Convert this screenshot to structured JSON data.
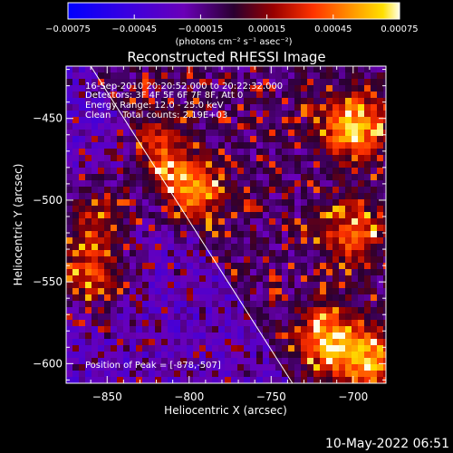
{
  "chart_data": {
    "type": "heatmap",
    "title": "Reconstructed RHESSI Image",
    "xlabel": "Heliocentric X (arcsec)",
    "ylabel": "Heliocentric Y (arcsec)",
    "xlim": [
      -875,
      -680
    ],
    "ylim": [
      -612,
      -418
    ],
    "xticks": [
      -850,
      -800,
      -750,
      -700
    ],
    "xtick_labels": [
      "−850",
      "−800",
      "−750",
      "−700"
    ],
    "yticks": [
      -450,
      -500,
      -550,
      -600
    ],
    "ytick_labels": [
      "−450",
      "−500",
      "−550",
      "−600"
    ],
    "colorbar": {
      "range": [
        -0.00075,
        0.00075
      ],
      "ticks": [
        -0.00075,
        -0.00045,
        -0.00015,
        0.00015,
        0.00045,
        0.00075
      ],
      "tick_labels": [
        "−0.00075",
        "−0.00045",
        "−0.00015",
        "0.00015",
        "0.00045",
        "0.00075"
      ],
      "colormap": [
        "#0000ff",
        "#4400dd",
        "#7700bb",
        "#330044",
        "#aa0000",
        "#ff4400",
        "#ff9900",
        "#ffdd00",
        "#ffffcc"
      ]
    },
    "annotations": [
      "16-Sep-2010 20:20:52.000 to 20:22:32.000",
      "Detectors: 3F 4F 5F 6F 7F 8F, Att 0",
      "Energy Range: 12.0 - 25.0 keV",
      "Clean    Total counts: 2.19E+03"
    ],
    "peak_label": "Position of Peak = [-878,-507]",
    "limb_line": [
      [
        -860,
        -418
      ],
      [
        -737,
        -612
      ]
    ],
    "bright_regions": [
      {
        "x": -860,
        "y": -545,
        "value": 0.0006
      },
      {
        "x": -855,
        "y": -510,
        "value": 0.0005
      },
      {
        "x": -820,
        "y": -470,
        "value": 0.0004
      },
      {
        "x": -800,
        "y": -495,
        "value": 0.0006
      },
      {
        "x": -700,
        "y": -455,
        "value": 0.0007
      },
      {
        "x": -700,
        "y": -520,
        "value": 0.0005
      },
      {
        "x": -715,
        "y": -585,
        "value": 0.0006
      },
      {
        "x": -690,
        "y": -600,
        "value": 0.0006
      }
    ]
  },
  "colorbar_units": "(photons cm⁻² s⁻¹ asec⁻²)",
  "footer_date": "10-May-2022 06:51"
}
